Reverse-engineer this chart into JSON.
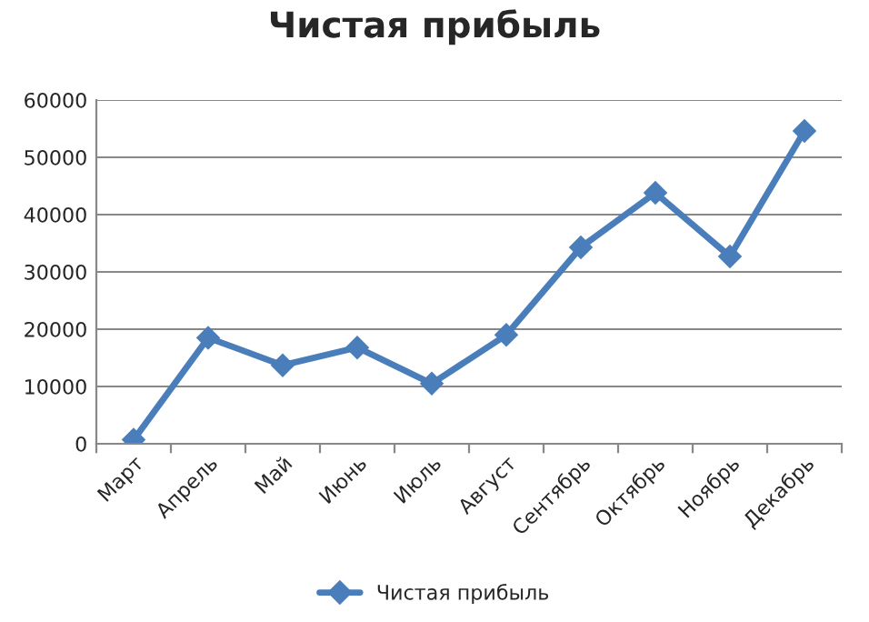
{
  "chart_data": {
    "type": "line",
    "title": "Чистая прибыль",
    "categories": [
      "Март",
      "Апрель",
      "Май",
      "Июнь",
      "Июль",
      "Август",
      "Сентябрь",
      "Октябрь",
      "Ноябрь",
      "Декабрь"
    ],
    "series": [
      {
        "name": "Чистая прибыль",
        "color": "#4a7ebb",
        "values": [
          700,
          18500,
          13700,
          16800,
          10500,
          19000,
          34300,
          43800,
          32700,
          54600
        ]
      }
    ],
    "ylim": [
      0,
      60000
    ],
    "yticks": [
      0,
      10000,
      20000,
      30000,
      40000,
      50000,
      60000
    ],
    "grid": "y",
    "legend": "bottom",
    "marker": "diamond",
    "line_style": "solid"
  }
}
